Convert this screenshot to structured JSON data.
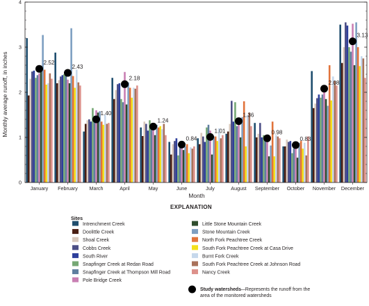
{
  "chart_data": {
    "type": "bar",
    "xlabel": "Month",
    "ylabel": "Monthly average runoff, in inches",
    "ylim": [
      0,
      4
    ],
    "yticks": [
      0,
      1,
      2,
      3,
      4
    ],
    "grid": false,
    "categories": [
      "January",
      "February",
      "March",
      "April",
      "May",
      "June",
      "July",
      "August",
      "September",
      "October",
      "November",
      "December"
    ],
    "series": [
      {
        "name": "Intrenchment Creek",
        "color": "#1f4e6e",
        "values": [
          3.2,
          2.88,
          1.13,
          2.32,
          1.22,
          0.9,
          0.98,
          1.08,
          1.32,
          0.8,
          2.47,
          3.5
        ]
      },
      {
        "name": "Doolittle Creek",
        "color": "#4a1f14",
        "values": [
          1.93,
          2.2,
          1.3,
          1.85,
          1.03,
          0.62,
          0.85,
          1.13,
          1.0,
          0.8,
          1.65,
          2.65
        ]
      },
      {
        "name": "Shoal Creek",
        "color": "#d8c8bc",
        "values": [
          2.3,
          2.27,
          1.38,
          2.05,
          1.35,
          0.85,
          1.1,
          1.3,
          1.08,
          0.95,
          1.75,
          3.0
        ]
      },
      {
        "name": "Cobbs Creek",
        "color": "#4d4f86",
        "values": [
          2.46,
          2.35,
          1.4,
          2.18,
          1.3,
          0.92,
          1.02,
          1.81,
          1.32,
          0.9,
          1.87,
          3.55
        ]
      },
      {
        "name": "South River",
        "color": "#2e3f9b",
        "values": [
          2.48,
          2.38,
          1.35,
          2.2,
          1.15,
          0.98,
          0.9,
          1.35,
          1.0,
          0.92,
          1.95,
          3.48
        ]
      },
      {
        "name": "Snapfinger Creek at Redan Road",
        "color": "#76a875",
        "values": [
          2.32,
          2.4,
          1.65,
          1.85,
          1.38,
          0.6,
          1.22,
          1.78,
          1.05,
          0.65,
          1.88,
          3.0
        ]
      },
      {
        "name": "Snapfinger Creek at Thompson Mill Road",
        "color": "#5f7f9f",
        "values": [
          2.38,
          2.44,
          1.48,
          1.78,
          1.25,
          0.82,
          1.28,
          1.25,
          1.0,
          0.75,
          1.95,
          2.9
        ]
      },
      {
        "name": "Pole Bridge Creek",
        "color": "#c97fb3",
        "values": [
          2.42,
          2.28,
          1.6,
          2.45,
          1.2,
          0.9,
          1.15,
          1.35,
          0.98,
          0.82,
          2.0,
          3.52
        ]
      },
      {
        "name": "Little Stone Mountain Creek",
        "color": "#2e4d2d",
        "values": [
          2.55,
          2.2,
          1.55,
          1.73,
          1.05,
          0.72,
          0.62,
          1.0,
          0.58,
          0.55,
          1.85,
          2.6
        ]
      },
      {
        "name": "Stone Mountain Creek",
        "color": "#7e9fc1",
        "values": [
          3.27,
          3.42,
          1.58,
          2.22,
          1.28,
          0.8,
          1.02,
          1.45,
          0.82,
          0.88,
          1.7,
          3.55
        ]
      },
      {
        "name": "North Fork Peachtree Creek",
        "color": "#e1733b",
        "values": [
          2.5,
          2.36,
          1.35,
          2.1,
          1.22,
          0.85,
          1.02,
          1.8,
          1.35,
          0.92,
          2.6,
          3.0
        ]
      },
      {
        "name": "South Fork Peachtree Creek at Casa Drive",
        "color": "#f3e01b",
        "values": [
          2.17,
          2.1,
          1.28,
          1.88,
          1.25,
          0.65,
          0.92,
          0.8,
          0.58,
          0.75,
          1.82,
          2.58
        ]
      },
      {
        "name": "Burnt Fork Creek",
        "color": "#c6d8ec",
        "values": [
          2.2,
          2.5,
          1.5,
          2.1,
          1.18,
          0.78,
          1.2,
          1.5,
          1.05,
          0.88,
          2.35,
          2.8
        ]
      },
      {
        "name": "South Fork Peachtree Creek at Johnson Road",
        "color": "#a9725b",
        "values": [
          2.42,
          2.22,
          1.3,
          2.08,
          1.3,
          0.75,
          0.98,
          1.55,
          1.02,
          0.6,
          2.25,
          2.75
        ]
      },
      {
        "name": "Nancy Creek",
        "color": "#dd918b",
        "values": [
          2.3,
          2.15,
          1.32,
          2.15,
          1.05,
          0.8,
          1.05,
          1.25,
          0.98,
          1.02,
          2.15,
          2.32
        ]
      }
    ],
    "study_watersheds": {
      "name": "Study watersheds",
      "description": "Represents the runoff from the area of the monitored watersheds",
      "values": [
        2.52,
        2.43,
        1.4,
        2.18,
        1.24,
        0.84,
        1.01,
        1.36,
        0.98,
        0.83,
        2.08,
        3.13
      ],
      "labels": [
        "2.52",
        "2.43",
        "1.40",
        "2.18",
        "1.24",
        "0.84",
        "1.01",
        "1.36",
        "0.98",
        "0.83",
        "2.08",
        "3.13"
      ]
    }
  },
  "legend": {
    "heading": "EXPLANATION",
    "subheading": "Sites",
    "marker_label": "Study watersheds",
    "marker_desc_line1": "—Represents the runoff from the",
    "marker_desc_line2": "area of the monitored watersheds"
  }
}
